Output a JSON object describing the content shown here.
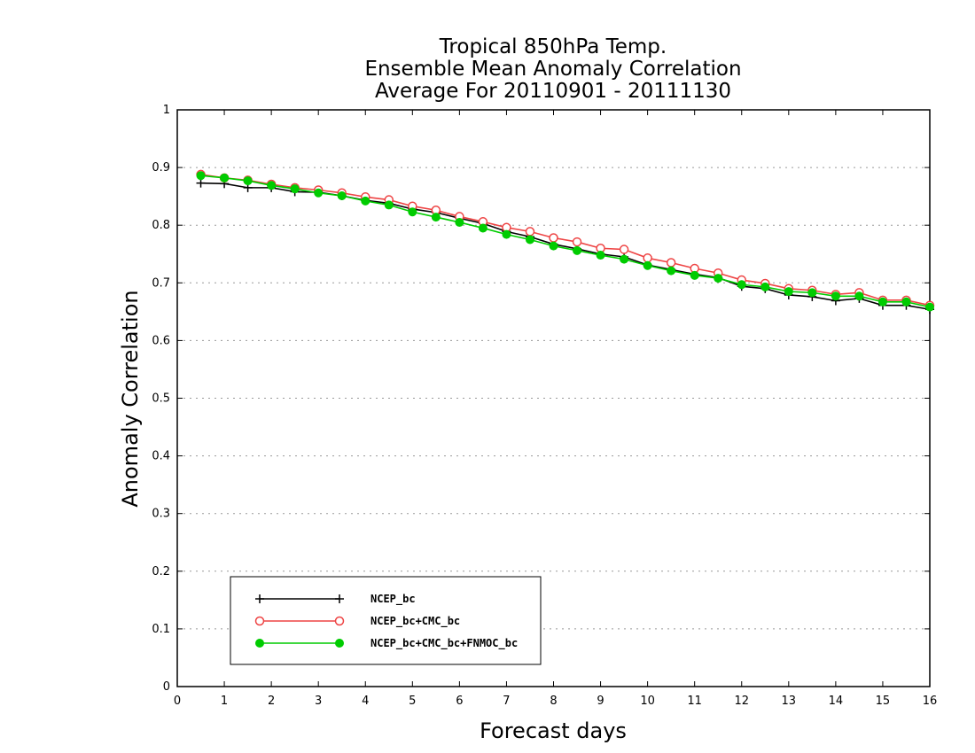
{
  "chart_data": {
    "type": "line",
    "title_lines": [
      "Tropical 850hPa Temp.",
      "Ensemble Mean Anomaly Correlation",
      "Average For 20110901 - 20111130"
    ],
    "xlabel": "Forecast days",
    "ylabel": "Anomaly Correlation",
    "xlim": [
      0,
      16
    ],
    "ylim": [
      0,
      1
    ],
    "xticks": [
      "0",
      "1",
      "2",
      "3",
      "4",
      "5",
      "6",
      "7",
      "8",
      "9",
      "10",
      "11",
      "12",
      "13",
      "14",
      "15",
      "16"
    ],
    "yticks": [
      "0",
      "0.1",
      "0.2",
      "0.3",
      "0.4",
      "0.5",
      "0.6",
      "0.7",
      "0.8",
      "0.9",
      "1"
    ],
    "grid": "horizontal dotted",
    "legend_position": "bottom-left",
    "x": [
      0.5,
      1,
      1.5,
      2,
      2.5,
      3,
      3.5,
      4,
      4.5,
      5,
      5.5,
      6,
      6.5,
      7,
      7.5,
      8,
      8.5,
      9,
      9.5,
      10,
      10.5,
      11,
      11.5,
      12,
      12.5,
      13,
      13.5,
      14,
      14.5,
      15,
      15.5,
      16
    ],
    "series": [
      {
        "name": "NCEP_bc",
        "color": "#000000",
        "marker": "plus",
        "values": [
          0.873,
          0.872,
          0.865,
          0.865,
          0.858,
          0.857,
          0.851,
          0.843,
          0.838,
          0.828,
          0.822,
          0.812,
          0.803,
          0.789,
          0.78,
          0.767,
          0.759,
          0.75,
          0.745,
          0.731,
          0.723,
          0.715,
          0.709,
          0.694,
          0.69,
          0.679,
          0.676,
          0.669,
          0.673,
          0.661,
          0.661,
          0.654
        ]
      },
      {
        "name": "NCEP_bc+CMC_bc",
        "color": "#ee4444",
        "marker": "open-circle",
        "values": [
          0.888,
          0.882,
          0.878,
          0.871,
          0.865,
          0.861,
          0.856,
          0.849,
          0.844,
          0.833,
          0.826,
          0.815,
          0.806,
          0.796,
          0.789,
          0.778,
          0.771,
          0.76,
          0.758,
          0.743,
          0.735,
          0.725,
          0.717,
          0.705,
          0.699,
          0.69,
          0.687,
          0.68,
          0.683,
          0.67,
          0.67,
          0.661
        ]
      },
      {
        "name": "NCEP_bc+CMC_bc+FNMOC_bc",
        "color": "#00cc00",
        "marker": "filled-circle",
        "values": [
          0.886,
          0.882,
          0.877,
          0.869,
          0.863,
          0.856,
          0.851,
          0.842,
          0.835,
          0.823,
          0.814,
          0.805,
          0.795,
          0.784,
          0.775,
          0.764,
          0.756,
          0.748,
          0.741,
          0.73,
          0.721,
          0.713,
          0.708,
          0.697,
          0.693,
          0.685,
          0.683,
          0.677,
          0.677,
          0.667,
          0.667,
          0.658
        ]
      }
    ]
  }
}
